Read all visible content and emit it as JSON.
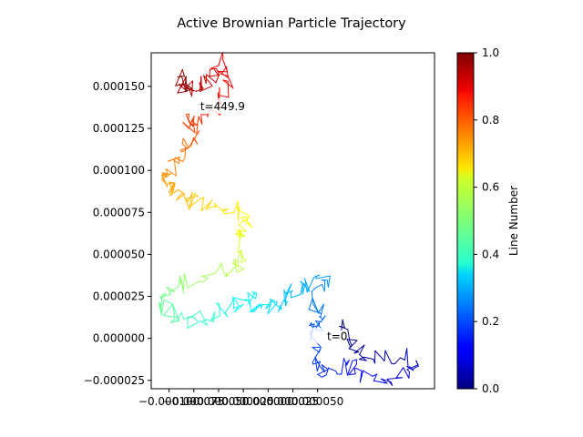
{
  "chart_data": {
    "type": "line",
    "title": "Active Brownian Particle Trajectory",
    "xlabel": "",
    "ylabel": "",
    "xlim": [
      -0.000118,
      0.000168
    ],
    "ylim": [
      -3e-05,
      0.00017
    ],
    "x_ticks": [
      -0.0001,
      -7.5e-05,
      -5e-05,
      -2.5e-05,
      0.0,
      2.5e-05,
      5e-05
    ],
    "x_tick_labels": [
      "−0.000100",
      "−0.000075",
      "−0.000050",
      "−0.000025",
      "0.000000",
      "0.000025",
      "0.000050"
    ],
    "y_ticks": [
      -2.5e-05,
      0.0,
      2.5e-05,
      5e-05,
      7.5e-05,
      0.0001,
      0.000125,
      0.00015
    ],
    "y_tick_labels": [
      "−0.000025",
      "0.000000",
      "0.000025",
      "0.000050",
      "0.000075",
      "0.000100",
      "0.000125",
      "0.000150"
    ],
    "colormap": "jet",
    "annotations": [
      {
        "text": "t=0",
        "x": 5.95e-05,
        "y": 7e-07
      },
      {
        "text": "t=449.9",
        "x": -6.85e-05,
        "y": 0.0001375
      }
    ],
    "trajectory_anchors": [
      [
        7.2e-05,
        7e-06
      ],
      [
        8.5e-05,
        -5e-06
      ],
      [
        0.0001,
        -1.2e-05
      ],
      [
        0.00014,
        -1e-05
      ],
      [
        0.00015,
        -1.8e-05
      ],
      [
        0.00012,
        -2.8e-05
      ],
      [
        9.2e-05,
        -2.2e-05
      ],
      [
        8e-05,
        -1.5e-05
      ],
      [
        5.5e-05,
        -2.2e-05
      ],
      [
        5e-05,
        -1e-05
      ],
      [
        4.5e-05,
        5e-06
      ],
      [
        5.5e-05,
        1.2e-05
      ],
      [
        4.5e-05,
        2e-05
      ],
      [
        6e-05,
        3.5e-05
      ],
      [
        3.5e-05,
        3e-05
      ],
      [
        2.2e-05,
        2.8e-05
      ],
      [
        1e-05,
        1.8e-05
      ],
      [
        -1e-05,
        1.8e-05
      ],
      [
        -2e-05,
        2.5e-05
      ],
      [
        -3.5e-05,
        2e-05
      ],
      [
        -5.5e-05,
        1.5e-05
      ],
      [
        -7.5e-05,
        1e-05
      ],
      [
        -9.5e-05,
        1.5e-05
      ],
      [
        -0.00011,
        2e-05
      ],
      [
        -0.0001,
        2.8e-05
      ],
      [
        -8e-05,
        3.5e-05
      ],
      [
        -5e-05,
        4e-05
      ],
      [
        -3e-05,
        4.5e-05
      ],
      [
        -2.5e-05,
        5.5e-05
      ],
      [
        -3e-05,
        6.5e-05
      ],
      [
        -2e-05,
        7e-05
      ],
      [
        -4e-05,
        7.8e-05
      ],
      [
        -6.5e-05,
        8e-05
      ],
      [
        -8.5e-05,
        8.2e-05
      ],
      [
        -9.8e-05,
        8.8e-05
      ],
      [
        -0.000105,
        9.5e-05
      ],
      [
        -9.5e-05,
        0.000105
      ],
      [
        -8.5e-05,
        0.000115
      ],
      [
        -7.5e-05,
        0.00012
      ],
      [
        -8e-05,
        0.00013
      ],
      [
        -7e-05,
        0.00013
      ],
      [
        -4.5e-05,
        0.00014
      ],
      [
        -4e-05,
        0.000155
      ],
      [
        -5e-05,
        0.000168
      ],
      [
        -5.5e-05,
        0.000155
      ],
      [
        -7e-05,
        0.00015
      ],
      [
        -8.5e-05,
        0.000148
      ],
      [
        -9e-05,
        0.000155
      ],
      [
        -8e-05,
        0.00015
      ]
    ]
  },
  "colorbar": {
    "label": "Line Number",
    "range": [
      0.0,
      1.0
    ],
    "ticks": [
      0.0,
      0.2,
      0.4,
      0.6,
      0.8,
      1.0
    ],
    "tick_labels": [
      "0.0",
      "0.2",
      "0.4",
      "0.6",
      "0.8",
      "1.0"
    ]
  }
}
